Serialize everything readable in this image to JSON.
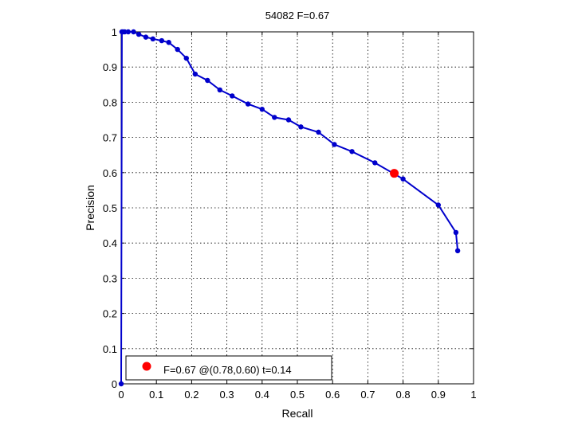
{
  "chart_data": {
    "type": "line",
    "title": "54082 F=0.67",
    "xlabel": "Recall",
    "ylabel": "Precision",
    "xlim": [
      0,
      1
    ],
    "ylim": [
      0,
      1
    ],
    "grid": true,
    "xticks": [
      0,
      0.1,
      0.2,
      0.3,
      0.4,
      0.5,
      0.6,
      0.7,
      0.8,
      0.9,
      1
    ],
    "yticks": [
      0,
      0.1,
      0.2,
      0.3,
      0.4,
      0.5,
      0.6,
      0.7,
      0.8,
      0.9,
      1
    ],
    "tick_labels_x": [
      "0",
      "0.1",
      "0.2",
      "0.3",
      "0.4",
      "0.5",
      "0.6",
      "0.7",
      "0.8",
      "0.9",
      "1"
    ],
    "tick_labels_y": [
      "0",
      "0.1",
      "0.2",
      "0.3",
      "0.4",
      "0.5",
      "0.6",
      "0.7",
      "0.8",
      "0.9",
      "1"
    ],
    "series": [
      {
        "color": "#0000cc",
        "x": [
          0,
          0.002,
          0.005,
          0.01,
          0.02,
          0.035,
          0.05,
          0.07,
          0.09,
          0.115,
          0.135,
          0.16,
          0.185,
          0.21,
          0.245,
          0.28,
          0.315,
          0.36,
          0.4,
          0.435,
          0.475,
          0.51,
          0.56,
          0.605,
          0.655,
          0.72,
          0.8,
          0.9,
          0.95,
          0.955
        ],
        "y": [
          0,
          1.0,
          1.0,
          1.0,
          1.0,
          1.0,
          0.993,
          0.985,
          0.98,
          0.975,
          0.97,
          0.95,
          0.925,
          0.88,
          0.862,
          0.835,
          0.818,
          0.795,
          0.78,
          0.757,
          0.75,
          0.73,
          0.715,
          0.68,
          0.66,
          0.628,
          0.582,
          0.508,
          0.43,
          0.378
        ]
      }
    ],
    "best_point": {
      "x": 0.775,
      "y": 0.598,
      "color": "#ff0000"
    },
    "legend": {
      "label": "F=0.67 @(0.78,0.60) t=0.14",
      "placement": "bottom-left"
    }
  }
}
